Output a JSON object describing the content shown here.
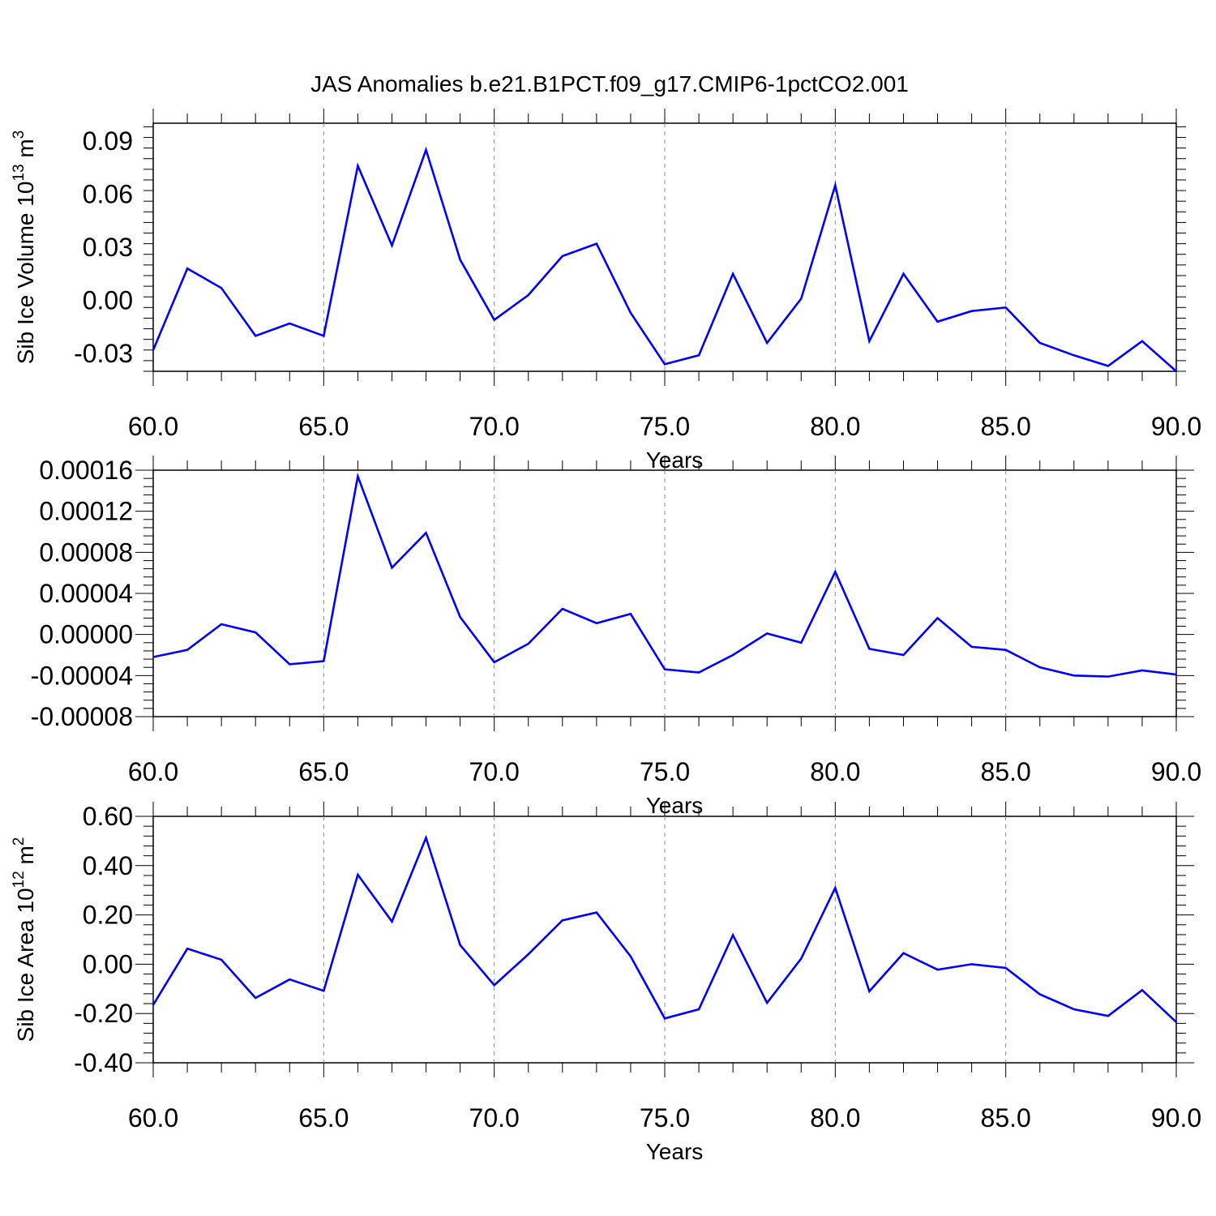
{
  "title": "JAS Anomalies b.e21.B1PCT.f09_g17.CMIP6-1pctCO2.001",
  "colors": {
    "line": "#0000ff",
    "axis": "#000000",
    "grid": "#888888",
    "background": "#ffffff"
  },
  "chart_data": [
    {
      "type": "line",
      "ylabel": "Sib Ice Volume 10",
      "ylabel_sup1": "13",
      "ylabel_unit": " m",
      "ylabel_sup2": "3",
      "xlabel": "Years",
      "xlim": [
        60,
        90
      ],
      "ylim": [
        -0.04,
        0.1
      ],
      "xticks": [
        60,
        65,
        70,
        75,
        80,
        85,
        90
      ],
      "xtick_labels": [
        "60.0",
        "65.0",
        "70.0",
        "75.0",
        "80.0",
        "85.0",
        "90.0"
      ],
      "yticks": [
        -0.03,
        0.0,
        0.03,
        0.06,
        0.09
      ],
      "ytick_labels": [
        "-0.03",
        "0.00",
        "0.03",
        "0.06",
        "0.09"
      ],
      "grid_x_dashed": true,
      "hline_at_top": true,
      "series": [
        {
          "x": [
            60,
            61,
            62,
            63,
            64,
            65,
            66,
            67,
            68,
            69,
            70,
            71,
            72,
            73,
            74,
            75,
            76,
            77,
            78,
            79,
            80,
            81,
            82,
            83,
            84,
            85,
            86,
            87,
            88,
            89,
            90
          ],
          "values": [
            -0.028,
            0.018,
            0.007,
            -0.02,
            -0.013,
            -0.02,
            0.076,
            0.031,
            0.085,
            0.023,
            -0.011,
            0.003,
            0.025,
            0.032,
            -0.007,
            -0.036,
            -0.031,
            0.015,
            -0.024,
            0.001,
            0.065,
            -0.023,
            0.015,
            -0.012,
            -0.006,
            -0.004,
            -0.024,
            -0.031,
            -0.037,
            -0.023,
            -0.04
          ]
        }
      ]
    },
    {
      "type": "line",
      "ylabel": "",
      "xlabel": "Years",
      "xlim": [
        60,
        90
      ],
      "ylim": [
        -8e-05,
        0.00016
      ],
      "xticks": [
        60,
        65,
        70,
        75,
        80,
        85,
        90
      ],
      "xtick_labels": [
        "60.0",
        "65.0",
        "70.0",
        "75.0",
        "80.0",
        "85.0",
        "90.0"
      ],
      "yticks": [
        -8e-05,
        -4e-05,
        0.0,
        4e-05,
        8e-05,
        0.00012,
        0.00016
      ],
      "ytick_labels": [
        "-0.00008",
        "-0.00004",
        "0.00000",
        "0.00004",
        "0.00008",
        "0.00012",
        "0.00016"
      ],
      "grid_x_dashed": true,
      "series": [
        {
          "x": [
            60,
            61,
            62,
            63,
            64,
            65,
            66,
            67,
            68,
            69,
            70,
            71,
            72,
            73,
            74,
            75,
            76,
            77,
            78,
            79,
            80,
            81,
            82,
            83,
            84,
            85,
            86,
            87,
            88,
            89,
            90
          ],
          "values": [
            -2.2e-05,
            -1.5e-05,
            1e-05,
            2e-06,
            -2.9e-05,
            -2.6e-05,
            0.000154,
            6.5e-05,
            9.9e-05,
            1.7e-05,
            -2.7e-05,
            -9e-06,
            2.5e-05,
            1.1e-05,
            2e-05,
            -3.4e-05,
            -3.7e-05,
            -2e-05,
            1e-06,
            -8e-06,
            6.1e-05,
            -1.4e-05,
            -2e-05,
            1.6e-05,
            -1.2e-05,
            -1.5e-05,
            -3.2e-05,
            -4e-05,
            -4.1e-05,
            -3.5e-05,
            -3.9e-05
          ]
        }
      ]
    },
    {
      "type": "line",
      "ylabel": "Sib Ice Area 10",
      "ylabel_sup1": "12",
      "ylabel_unit": " m",
      "ylabel_sup2": "2",
      "xlabel": "Years",
      "xlim": [
        60,
        90
      ],
      "ylim": [
        -0.4,
        0.6
      ],
      "xticks": [
        60,
        65,
        70,
        75,
        80,
        85,
        90
      ],
      "xtick_labels": [
        "60.0",
        "65.0",
        "70.0",
        "75.0",
        "80.0",
        "85.0",
        "90.0"
      ],
      "yticks": [
        -0.4,
        -0.2,
        0.0,
        0.2,
        0.4,
        0.6
      ],
      "ytick_labels": [
        "-0.40",
        "-0.20",
        "0.00",
        "0.20",
        "0.40",
        "0.60"
      ],
      "grid_x_dashed": true,
      "series": [
        {
          "x": [
            60,
            61,
            62,
            63,
            64,
            65,
            66,
            67,
            68,
            69,
            70,
            71,
            72,
            73,
            74,
            75,
            76,
            77,
            78,
            79,
            80,
            81,
            82,
            83,
            84,
            85,
            86,
            87,
            88,
            89,
            90
          ],
          "values": [
            -0.165,
            0.063,
            0.018,
            -0.137,
            -0.062,
            -0.108,
            0.363,
            0.173,
            0.513,
            0.078,
            -0.085,
            0.04,
            0.178,
            0.21,
            0.032,
            -0.22,
            -0.183,
            0.118,
            -0.157,
            0.023,
            0.31,
            -0.11,
            0.045,
            -0.022,
            0.0,
            -0.015,
            -0.122,
            -0.183,
            -0.21,
            -0.105,
            -0.235
          ]
        }
      ]
    }
  ]
}
